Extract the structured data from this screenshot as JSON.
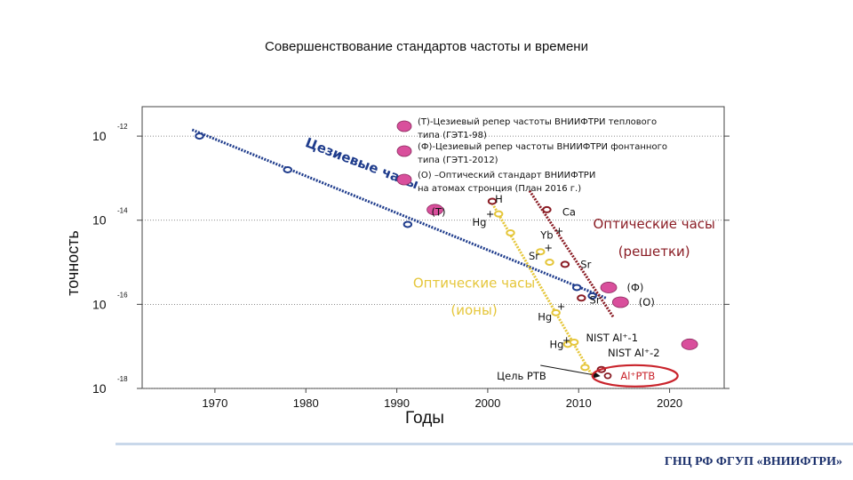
{
  "title": "Совершенствование стандартов частоты и времени",
  "footer": "ГНЦ РФ ФГУП «ВНИИФТРИ»",
  "colors": {
    "cesium": "#1f3c8c",
    "ions": "#e5c63a",
    "lattice": "#8a1c24",
    "marker_pink": "#d94f9c",
    "axis": "#444444",
    "grid": "#666666",
    "highlight": "#c9232b"
  },
  "chart_data": {
    "type": "scatter",
    "xlabel": "Годы",
    "ylabel": "точность",
    "xlim": [
      1962,
      2026
    ],
    "ylim": [
      -18,
      -11.3
    ],
    "x_ticks": [
      1970,
      1980,
      1990,
      2000,
      2010,
      2020
    ],
    "y_ticks": [
      {
        "value": -12,
        "base": "10",
        "exp": "-12"
      },
      {
        "value": -14,
        "base": "10",
        "exp": "-14"
      },
      {
        "value": -16,
        "base": "10",
        "exp": "-16"
      },
      {
        "value": -18,
        "base": "10",
        "exp": "-18"
      }
    ],
    "grid": "horizontal",
    "series": [
      {
        "name": "Цезиевые часы",
        "color": "#1f3c8c",
        "points": [
          [
            1968.3,
            -12.0
          ],
          [
            1978,
            -12.8
          ],
          [
            1991.2,
            -14.1
          ],
          [
            2009.8,
            -15.6
          ],
          [
            2011.5,
            -15.8
          ]
        ],
        "trend": [
          [
            1967.5,
            -11.85
          ],
          [
            2013,
            -15.85
          ]
        ]
      },
      {
        "name": "Оптические часы\n(ионы)",
        "color": "#e5c63a",
        "points": [
          [
            2001.2,
            -13.85
          ],
          [
            2002.5,
            -14.3
          ],
          [
            2005.8,
            -14.75
          ],
          [
            2006.8,
            -15.0
          ],
          [
            2007.5,
            -16.2
          ],
          [
            2008.8,
            -16.95
          ],
          [
            2009.5,
            -16.9
          ],
          [
            2010.7,
            -17.5
          ]
        ],
        "trend": [
          [
            2000.5,
            -13.6
          ],
          [
            2011.5,
            -17.7
          ]
        ]
      },
      {
        "name": "Оптические часы\n(решетки)",
        "color": "#8a1c24",
        "points": [
          [
            2000.5,
            -13.55
          ],
          [
            2006.5,
            -13.75
          ],
          [
            2008.5,
            -15.05
          ],
          [
            2010.3,
            -15.85
          ],
          [
            2012.5,
            -17.55
          ]
        ],
        "trend": [
          [
            2004.6,
            -13.3
          ],
          [
            2013.8,
            -16.3
          ]
        ]
      }
    ],
    "point_labels": [
      {
        "text": "H",
        "x": 2000.8,
        "y": -13.5,
        "color": "#111111"
      },
      {
        "text": "+",
        "x": 1999.8,
        "y": -13.85,
        "color": "#111111"
      },
      {
        "text": "Hg",
        "x": 1998.3,
        "y": -14.05,
        "color": "#111111"
      },
      {
        "text": "Ca",
        "x": 2008.2,
        "y": -13.8,
        "color": "#111111"
      },
      {
        "text": "Yb",
        "x": 2005.8,
        "y": -14.35,
        "color": "#111111"
      },
      {
        "text": "+",
        "x": 2007.4,
        "y": -14.25,
        "color": "#111111"
      },
      {
        "text": "+",
        "x": 2006.2,
        "y": -14.65,
        "color": "#111111"
      },
      {
        "text": "Sr",
        "x": 2004.5,
        "y": -14.85,
        "color": "#111111"
      },
      {
        "text": "Sr",
        "x": 2010.2,
        "y": -15.05,
        "color": "#111111"
      },
      {
        "text": "Sr",
        "x": 2011.2,
        "y": -15.9,
        "color": "#111111"
      },
      {
        "text": "+",
        "x": 2007.6,
        "y": -16.05,
        "color": "#111111"
      },
      {
        "text": "Hg",
        "x": 2005.5,
        "y": -16.3,
        "color": "#111111"
      },
      {
        "text": "+",
        "x": 2008.2,
        "y": -16.85,
        "color": "#111111"
      },
      {
        "text": "Hg",
        "x": 2006.8,
        "y": -16.95,
        "color": "#111111"
      },
      {
        "text": "NIST Al⁺-1",
        "x": 2010.8,
        "y": -16.8,
        "color": "#111111"
      },
      {
        "text": "NIST Al⁺-2",
        "x": 2013.2,
        "y": -17.15,
        "color": "#111111"
      },
      {
        "text": "Цель РТВ",
        "x": 2001.0,
        "y": -17.7,
        "color": "#111111"
      },
      {
        "text": "Al⁺РТВ",
        "x": 2014.6,
        "y": -17.7,
        "color": "#c9232b"
      },
      {
        "text": "(Т)",
        "x": 1993.8,
        "y": -13.8,
        "color": "#111111"
      },
      {
        "text": "(Ф)",
        "x": 2015.3,
        "y": -15.6,
        "color": "#111111"
      },
      {
        "text": "(О)",
        "x": 2016.6,
        "y": -15.95,
        "color": "#111111"
      }
    ],
    "series_labels": [
      {
        "text": "Цезиевые часы",
        "x": 1986,
        "y": -12.75,
        "color": "#1f3c8c",
        "rotate": 21,
        "size": 15,
        "weight": "bold"
      },
      {
        "text": "Оптические часы",
        "x": 1998.5,
        "y": -15.6,
        "color": "#e5c63a",
        "rotate": 0,
        "size": 15,
        "weight": "normal"
      },
      {
        "text": "(ионы)",
        "x": 1998.5,
        "y": -16.25,
        "color": "#e5c63a",
        "rotate": 0,
        "size": 15,
        "weight": "normal"
      },
      {
        "text": "Оптические часы",
        "x": 2018.3,
        "y": -14.2,
        "color": "#8a1c24",
        "rotate": 0,
        "size": 15,
        "weight": "normal"
      },
      {
        "text": "(решетки)",
        "x": 2018.3,
        "y": -14.85,
        "color": "#8a1c24",
        "rotate": 0,
        "size": 15,
        "weight": "normal"
      }
    ],
    "pink_markers": [
      [
        1994.2,
        -13.75
      ],
      [
        2013.3,
        -15.6
      ],
      [
        2014.6,
        -15.95
      ],
      [
        2022.2,
        -16.95
      ]
    ],
    "legend": {
      "placement": "top-center",
      "entries": [
        [
          "(Т)-Цезиевый репер частоты ВНИИФТРИ теплового",
          "типа (ГЭТ1-98)"
        ],
        [
          "(Ф)-Цезиевый репер частоты ВНИИФТРИ фонтанного",
          "типа (ГЭТ1-2012)"
        ],
        [
          "(О) –Оптический стандарт ВНИИФТРИ",
          "на атомах стронция (План 2016 г.)"
        ]
      ]
    },
    "annotations": {
      "target_arrow": {
        "from": [
          2005.8,
          -17.45
        ],
        "to": [
          2012.2,
          -17.7
        ]
      },
      "target_ellipse": {
        "center": [
          2016.2,
          -17.7
        ],
        "label": "Al⁺РТВ"
      }
    }
  }
}
